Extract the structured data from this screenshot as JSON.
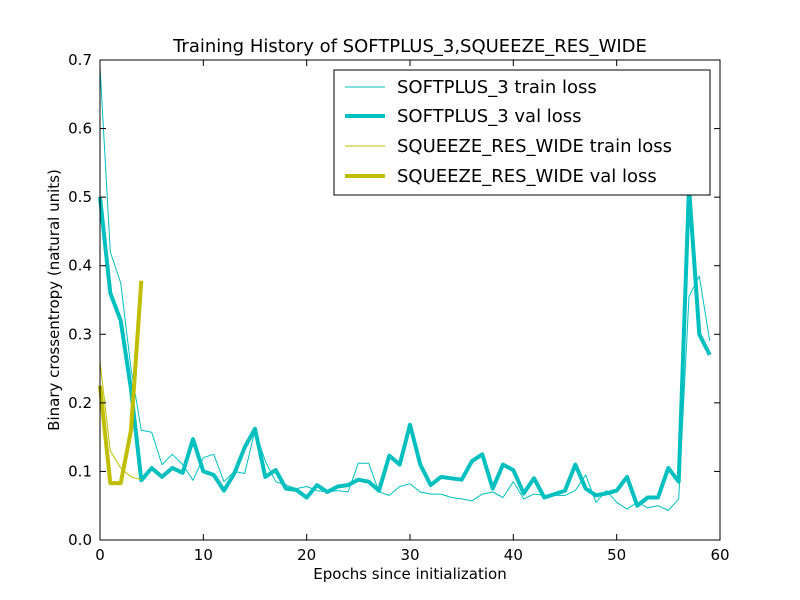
{
  "chart_data": {
    "type": "line",
    "title": "Training History of SOFTPLUS_3,SQUEEZE_RES_WIDE",
    "xlabel": "Epochs since initialization",
    "ylabel": "Binary crossentropy (natural units)",
    "xlim": [
      0,
      60
    ],
    "ylim": [
      0.0,
      0.7
    ],
    "xticks": [
      "0",
      "10",
      "20",
      "30",
      "40",
      "50",
      "60"
    ],
    "yticks": [
      "0.0",
      "0.1",
      "0.2",
      "0.3",
      "0.4",
      "0.5",
      "0.6",
      "0.7"
    ],
    "grid": false,
    "legend_position": "top-right",
    "colors": {
      "softplus": "#00bfbf",
      "squeeze": "#bfbf00"
    },
    "series": [
      {
        "name": "SOFTPLUS_3 train loss",
        "color": "#00bfbf",
        "style": "thin",
        "x": [
          0,
          1,
          2,
          3,
          4,
          5,
          6,
          7,
          8,
          9,
          10,
          11,
          12,
          13,
          14,
          15,
          16,
          17,
          18,
          19,
          20,
          21,
          22,
          23,
          24,
          25,
          26,
          27,
          28,
          29,
          30,
          31,
          32,
          33,
          34,
          35,
          36,
          37,
          38,
          39,
          40,
          41,
          42,
          43,
          44,
          45,
          46,
          47,
          48,
          49,
          50,
          51,
          52,
          53,
          54,
          55,
          56,
          57,
          58,
          59
        ],
        "y": [
          0.69,
          0.42,
          0.375,
          0.25,
          0.16,
          0.157,
          0.11,
          0.125,
          0.11,
          0.087,
          0.12,
          0.125,
          0.085,
          0.1,
          0.097,
          0.16,
          0.115,
          0.085,
          0.08,
          0.075,
          0.078,
          0.072,
          0.07,
          0.072,
          0.07,
          0.112,
          0.112,
          0.07,
          0.065,
          0.078,
          0.082,
          0.07,
          0.067,
          0.067,
          0.062,
          0.06,
          0.057,
          0.067,
          0.07,
          0.062,
          0.085,
          0.06,
          0.067,
          0.065,
          0.065,
          0.065,
          0.072,
          0.095,
          0.055,
          0.072,
          0.055,
          0.045,
          0.055,
          0.047,
          0.05,
          0.043,
          0.06,
          0.355,
          0.385,
          0.29
        ]
      },
      {
        "name": "SOFTPLUS_3 val loss",
        "color": "#00bfbf",
        "style": "thick",
        "x": [
          0,
          1,
          2,
          3,
          4,
          5,
          6,
          7,
          8,
          9,
          10,
          11,
          12,
          13,
          14,
          15,
          16,
          17,
          18,
          19,
          20,
          21,
          22,
          23,
          24,
          25,
          26,
          27,
          28,
          29,
          30,
          31,
          32,
          33,
          34,
          35,
          36,
          37,
          38,
          39,
          40,
          41,
          42,
          43,
          44,
          45,
          46,
          47,
          48,
          49,
          50,
          51,
          52,
          53,
          54,
          55,
          56,
          57,
          58,
          59
        ],
        "y": [
          0.5,
          0.36,
          0.32,
          0.22,
          0.087,
          0.105,
          0.092,
          0.105,
          0.098,
          0.147,
          0.1,
          0.095,
          0.072,
          0.097,
          0.135,
          0.162,
          0.092,
          0.102,
          0.075,
          0.073,
          0.062,
          0.08,
          0.07,
          0.078,
          0.08,
          0.088,
          0.085,
          0.072,
          0.123,
          0.11,
          0.168,
          0.11,
          0.08,
          0.092,
          0.09,
          0.088,
          0.115,
          0.125,
          0.075,
          0.11,
          0.102,
          0.068,
          0.09,
          0.062,
          0.067,
          0.072,
          0.11,
          0.075,
          0.065,
          0.068,
          0.072,
          0.092,
          0.05,
          0.062,
          0.062,
          0.105,
          0.085,
          0.515,
          0.3,
          0.27
        ]
      },
      {
        "name": "SQUEEZE_RES_WIDE train loss",
        "color": "#bfbf00",
        "style": "thin",
        "x": [
          0,
          1,
          2,
          3,
          4
        ],
        "y": [
          0.26,
          0.13,
          0.105,
          0.092,
          0.088
        ]
      },
      {
        "name": "SQUEEZE_RES_WIDE val loss",
        "color": "#bfbf00",
        "style": "thick",
        "x": [
          0,
          1,
          2,
          3,
          4
        ],
        "y": [
          0.225,
          0.083,
          0.083,
          0.16,
          0.378
        ]
      }
    ]
  }
}
